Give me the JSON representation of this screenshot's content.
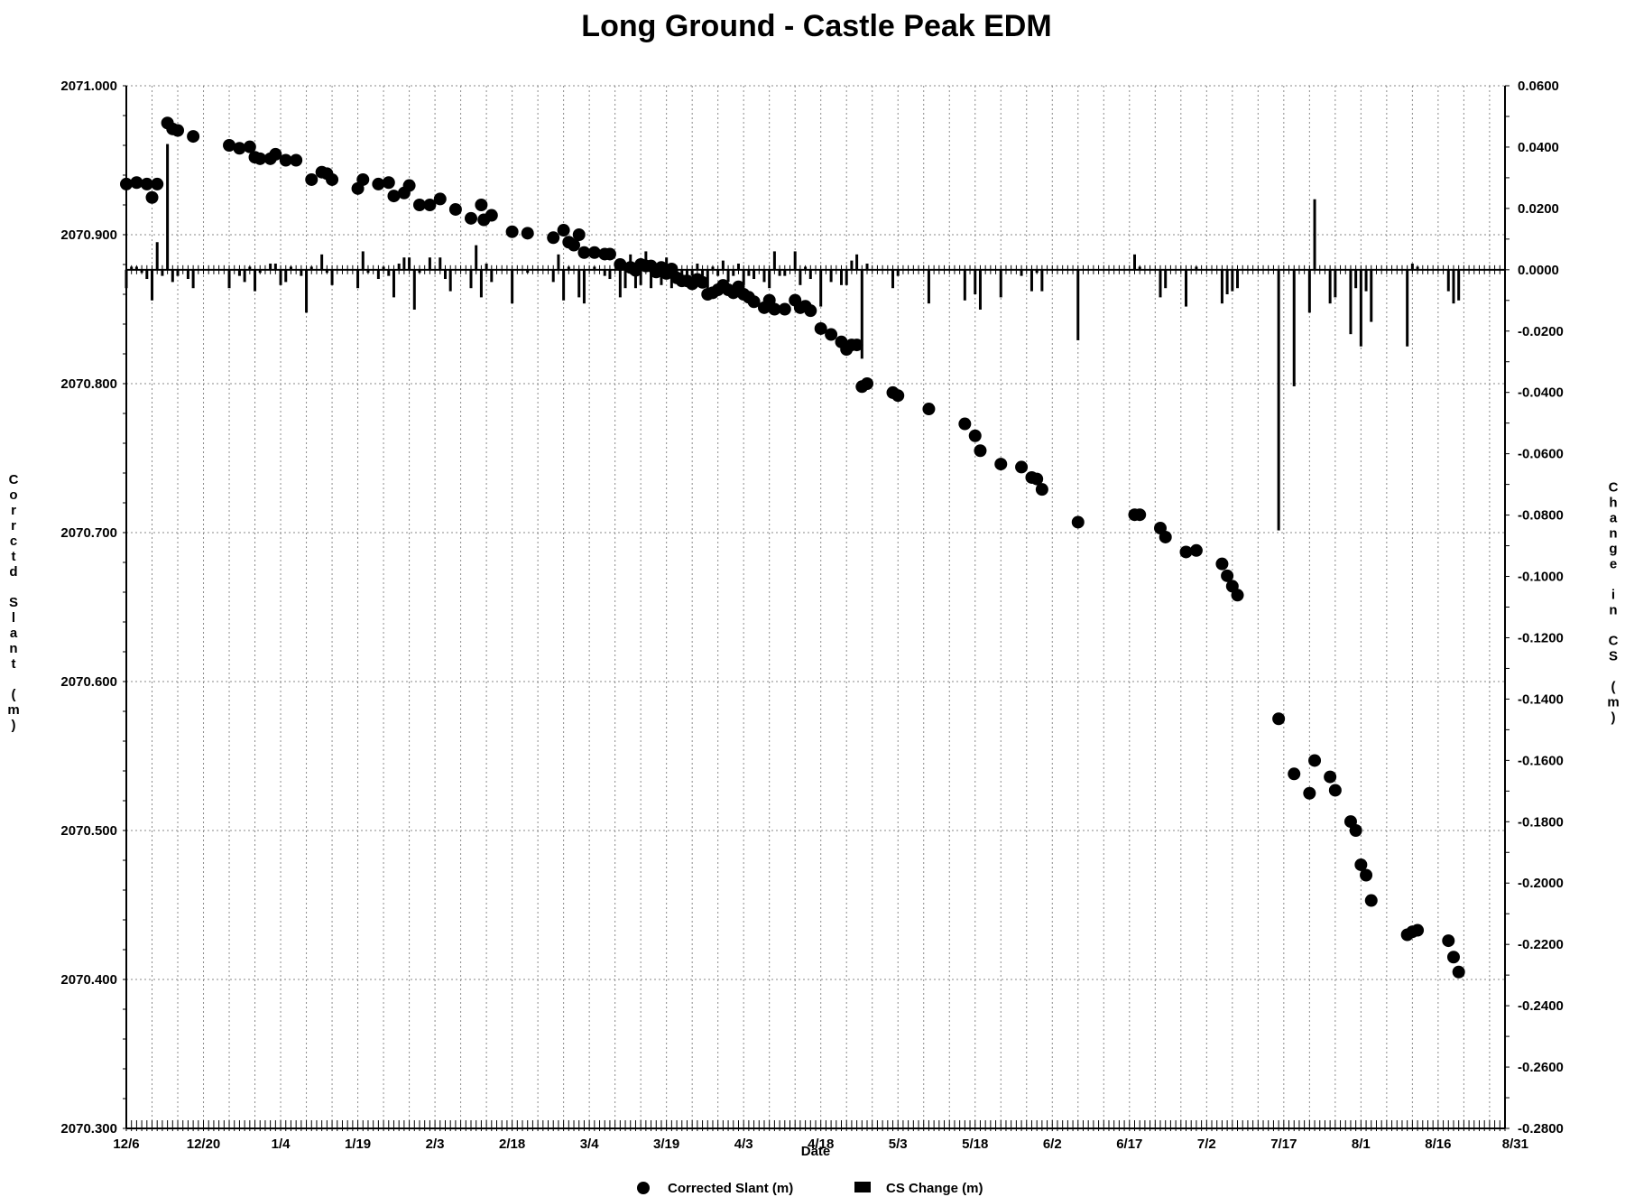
{
  "chart_data": {
    "type": "scatter",
    "title": "Long Ground - Castle Peak EDM",
    "xlabel": "Date",
    "ylabel": "Corrctd Slant (m)",
    "y2label": "Change in CS (m)",
    "x_ticks": [
      "12/6",
      "12/20",
      "1/4",
      "1/19",
      "2/3",
      "2/18",
      "3/4",
      "3/19",
      "4/3",
      "4/18",
      "5/3",
      "5/18",
      "6/2",
      "6/17",
      "7/2",
      "7/17",
      "8/1",
      "8/16",
      "8/31"
    ],
    "xlim": [
      0,
      268
    ],
    "y_ticks": [
      "2070.300",
      "2070.400",
      "2070.500",
      "2070.600",
      "2070.700",
      "2070.800",
      "2070.900",
      "2071.000"
    ],
    "ylim": [
      2070.3,
      2071.0
    ],
    "y2_ticks": [
      "-0.2800",
      "-0.2600",
      "-0.2400",
      "-0.2200",
      "-0.2000",
      "-0.1800",
      "-0.1600",
      "-0.1400",
      "-0.1200",
      "-0.1000",
      "-0.0800",
      "-0.0600",
      "-0.0400",
      "-0.0200",
      "0.0000",
      "0.0200",
      "0.0400",
      "0.0600"
    ],
    "y2lim": [
      -0.28,
      0.06
    ],
    "grid": true,
    "legend_position": "bottom",
    "series": [
      {
        "name": "Corrected Slant (m)",
        "axis": "left",
        "marker": "circle",
        "points": [
          [
            0,
            2070.934
          ],
          [
            2,
            2070.935
          ],
          [
            4,
            2070.934
          ],
          [
            5,
            2070.925
          ],
          [
            6,
            2070.934
          ],
          [
            8,
            2070.975
          ],
          [
            9,
            2070.971
          ],
          [
            10,
            2070.97
          ],
          [
            13,
            2070.966
          ],
          [
            20,
            2070.96
          ],
          [
            22,
            2070.958
          ],
          [
            24,
            2070.959
          ],
          [
            25,
            2070.952
          ],
          [
            26,
            2070.951
          ],
          [
            28,
            2070.951
          ],
          [
            29,
            2070.954
          ],
          [
            31,
            2070.95
          ],
          [
            33,
            2070.95
          ],
          [
            36,
            2070.937
          ],
          [
            38,
            2070.942
          ],
          [
            39,
            2070.941
          ],
          [
            40,
            2070.937
          ],
          [
            45,
            2070.931
          ],
          [
            46,
            2070.937
          ],
          [
            49,
            2070.934
          ],
          [
            51,
            2070.935
          ],
          [
            52,
            2070.926
          ],
          [
            54,
            2070.928
          ],
          [
            55,
            2070.933
          ],
          [
            57,
            2070.92
          ],
          [
            59,
            2070.92
          ],
          [
            61,
            2070.924
          ],
          [
            64,
            2070.917
          ],
          [
            67,
            2070.911
          ],
          [
            69,
            2070.92
          ],
          [
            69.5,
            2070.91
          ],
          [
            71,
            2070.913
          ],
          [
            75,
            2070.902
          ],
          [
            78,
            2070.901
          ],
          [
            83,
            2070.898
          ],
          [
            85,
            2070.903
          ],
          [
            86,
            2070.895
          ],
          [
            87,
            2070.893
          ],
          [
            88,
            2070.9
          ],
          [
            89,
            2070.888
          ],
          [
            91,
            2070.888
          ],
          [
            93,
            2070.887
          ],
          [
            94,
            2070.887
          ],
          [
            96,
            2070.88
          ],
          [
            98,
            2070.878
          ],
          [
            99,
            2070.876
          ],
          [
            100,
            2070.88
          ],
          [
            101,
            2070.879
          ],
          [
            102,
            2070.879
          ],
          [
            103,
            2070.875
          ],
          [
            104,
            2070.878
          ],
          [
            105,
            2070.874
          ],
          [
            106,
            2070.877
          ],
          [
            107,
            2070.871
          ],
          [
            108,
            2070.869
          ],
          [
            109,
            2070.869
          ],
          [
            110,
            2070.867
          ],
          [
            111,
            2070.87
          ],
          [
            112,
            2070.868
          ],
          [
            113,
            2070.86
          ],
          [
            114,
            2070.861
          ],
          [
            115,
            2070.863
          ],
          [
            116,
            2070.866
          ],
          [
            117,
            2070.863
          ],
          [
            118,
            2070.861
          ],
          [
            119,
            2070.865
          ],
          [
            120,
            2070.86
          ],
          [
            121,
            2070.858
          ],
          [
            122,
            2070.855
          ],
          [
            124,
            2070.851
          ],
          [
            125,
            2070.856
          ],
          [
            126,
            2070.85
          ],
          [
            128,
            2070.85
          ],
          [
            130,
            2070.856
          ],
          [
            131,
            2070.851
          ],
          [
            132,
            2070.852
          ],
          [
            133,
            2070.849
          ],
          [
            135,
            2070.837
          ],
          [
            137,
            2070.833
          ],
          [
            139,
            2070.828
          ],
          [
            140,
            2070.823
          ],
          [
            141,
            2070.826
          ],
          [
            142,
            2070.826
          ],
          [
            143,
            2070.798
          ],
          [
            144,
            2070.8
          ],
          [
            149,
            2070.794
          ],
          [
            150,
            2070.792
          ],
          [
            156,
            2070.783
          ],
          [
            163,
            2070.773
          ],
          [
            165,
            2070.765
          ],
          [
            166,
            2070.755
          ],
          [
            170,
            2070.746
          ],
          [
            174,
            2070.744
          ],
          [
            176,
            2070.737
          ],
          [
            177,
            2070.736
          ],
          [
            178,
            2070.729
          ],
          [
            185,
            2070.707
          ],
          [
            196,
            2070.712
          ],
          [
            197,
            2070.712
          ],
          [
            201,
            2070.703
          ],
          [
            202,
            2070.697
          ],
          [
            206,
            2070.687
          ],
          [
            208,
            2070.688
          ],
          [
            213,
            2070.679
          ],
          [
            214,
            2070.671
          ],
          [
            215,
            2070.664
          ],
          [
            216,
            2070.658
          ],
          [
            224,
            2070.575
          ],
          [
            227,
            2070.538
          ],
          [
            230,
            2070.525
          ],
          [
            231,
            2070.547
          ],
          [
            234,
            2070.536
          ],
          [
            235,
            2070.527
          ],
          [
            238,
            2070.506
          ],
          [
            239,
            2070.5
          ],
          [
            240,
            2070.477
          ],
          [
            241,
            2070.47
          ],
          [
            242,
            2070.453
          ],
          [
            249,
            2070.43
          ],
          [
            250,
            2070.432
          ],
          [
            251,
            2070.433
          ],
          [
            257,
            2070.426
          ],
          [
            258,
            2070.415
          ],
          [
            259,
            2070.405
          ]
        ]
      },
      {
        "name": "CS Change (m)",
        "axis": "right",
        "marker": "bar",
        "points": [
          [
            0,
            -0.006
          ],
          [
            1,
            0.001
          ],
          [
            2,
            0.001
          ],
          [
            3,
            -0.001
          ],
          [
            4,
            -0.003
          ],
          [
            5,
            -0.01
          ],
          [
            6,
            0.009
          ],
          [
            7,
            -0.002
          ],
          [
            8,
            0.041
          ],
          [
            9,
            -0.004
          ],
          [
            10,
            -0.002
          ],
          [
            12,
            -0.003
          ],
          [
            13,
            -0.006
          ],
          [
            20,
            -0.006
          ],
          [
            22,
            -0.002
          ],
          [
            23,
            -0.004
          ],
          [
            24,
            0.001
          ],
          [
            25,
            -0.007
          ],
          [
            26,
            -0.001
          ],
          [
            28,
            0.002
          ],
          [
            29,
            0.002
          ],
          [
            30,
            -0.005
          ],
          [
            31,
            -0.004
          ],
          [
            32,
            0.001
          ],
          [
            34,
            -0.002
          ],
          [
            35,
            -0.014
          ],
          [
            36,
            0.001
          ],
          [
            38,
            0.005
          ],
          [
            39,
            -0.001
          ],
          [
            40,
            -0.005
          ],
          [
            45,
            -0.006
          ],
          [
            46,
            0.006
          ],
          [
            47,
            -0.001
          ],
          [
            49,
            -0.003
          ],
          [
            50,
            0.001
          ],
          [
            51,
            -0.002
          ],
          [
            52,
            -0.009
          ],
          [
            53,
            0.002
          ],
          [
            54,
            0.004
          ],
          [
            55,
            0.004
          ],
          [
            56,
            -0.013
          ],
          [
            57,
            -0.001
          ],
          [
            59,
            0.004
          ],
          [
            61,
            0.004
          ],
          [
            62,
            -0.003
          ],
          [
            63,
            -0.007
          ],
          [
            67,
            -0.006
          ],
          [
            68,
            0.008
          ],
          [
            69,
            -0.009
          ],
          [
            70,
            0.002
          ],
          [
            71,
            -0.004
          ],
          [
            75,
            -0.011
          ],
          [
            78,
            -0.001
          ],
          [
            83,
            -0.004
          ],
          [
            84,
            0.005
          ],
          [
            85,
            -0.01
          ],
          [
            86,
            0.001
          ],
          [
            88,
            -0.009
          ],
          [
            89,
            -0.011
          ],
          [
            91,
            0.001
          ],
          [
            93,
            -0.002
          ],
          [
            94,
            -0.003
          ],
          [
            96,
            -0.009
          ],
          [
            97,
            -0.006
          ],
          [
            98,
            0.005
          ],
          [
            99,
            -0.006
          ],
          [
            100,
            -0.005
          ],
          [
            101,
            0.006
          ],
          [
            102,
            -0.006
          ],
          [
            103,
            0.002
          ],
          [
            104,
            -0.005
          ],
          [
            105,
            0.004
          ],
          [
            106,
            -0.006
          ],
          [
            107,
            -0.003
          ],
          [
            108,
            -0.004
          ],
          [
            109,
            -0.003
          ],
          [
            110,
            -0.002
          ],
          [
            111,
            0.002
          ],
          [
            112,
            -0.005
          ],
          [
            113,
            -0.008
          ],
          [
            114,
            0.001
          ],
          [
            115,
            -0.002
          ],
          [
            116,
            0.003
          ],
          [
            117,
            -0.004
          ],
          [
            118,
            -0.002
          ],
          [
            119,
            0.002
          ],
          [
            120,
            -0.005
          ],
          [
            121,
            -0.002
          ],
          [
            122,
            -0.003
          ],
          [
            124,
            -0.004
          ],
          [
            125,
            -0.006
          ],
          [
            126,
            0.006
          ],
          [
            127,
            -0.002
          ],
          [
            128,
            -0.002
          ],
          [
            130,
            0.006
          ],
          [
            131,
            -0.005
          ],
          [
            132,
            0.001
          ],
          [
            133,
            -0.003
          ],
          [
            135,
            -0.012
          ],
          [
            137,
            -0.004
          ],
          [
            139,
            -0.005
          ],
          [
            140,
            -0.005
          ],
          [
            141,
            0.003
          ],
          [
            142,
            0.005
          ],
          [
            143,
            -0.029
          ],
          [
            144,
            0.002
          ],
          [
            149,
            -0.006
          ],
          [
            150,
            -0.002
          ],
          [
            156,
            -0.011
          ],
          [
            163,
            -0.01
          ],
          [
            165,
            -0.008
          ],
          [
            166,
            -0.013
          ],
          [
            170,
            -0.009
          ],
          [
            174,
            -0.002
          ],
          [
            176,
            -0.007
          ],
          [
            177,
            -0.001
          ],
          [
            178,
            -0.007
          ],
          [
            185,
            -0.023
          ],
          [
            196,
            0.005
          ],
          [
            197,
            0.001
          ],
          [
            201,
            -0.009
          ],
          [
            202,
            -0.006
          ],
          [
            206,
            -0.012
          ],
          [
            208,
            0.001
          ],
          [
            213,
            -0.011
          ],
          [
            214,
            -0.008
          ],
          [
            215,
            -0.007
          ],
          [
            216,
            -0.006
          ],
          [
            224,
            -0.085
          ],
          [
            227,
            -0.038
          ],
          [
            230,
            -0.014
          ],
          [
            231,
            0.023
          ],
          [
            234,
            -0.011
          ],
          [
            235,
            -0.009
          ],
          [
            238,
            -0.021
          ],
          [
            239,
            -0.006
          ],
          [
            240,
            -0.025
          ],
          [
            241,
            -0.007
          ],
          [
            242,
            -0.017
          ],
          [
            249,
            -0.025
          ],
          [
            250,
            0.002
          ],
          [
            251,
            0.001
          ],
          [
            257,
            -0.007
          ],
          [
            258,
            -0.011
          ],
          [
            259,
            -0.01
          ]
        ]
      }
    ]
  }
}
